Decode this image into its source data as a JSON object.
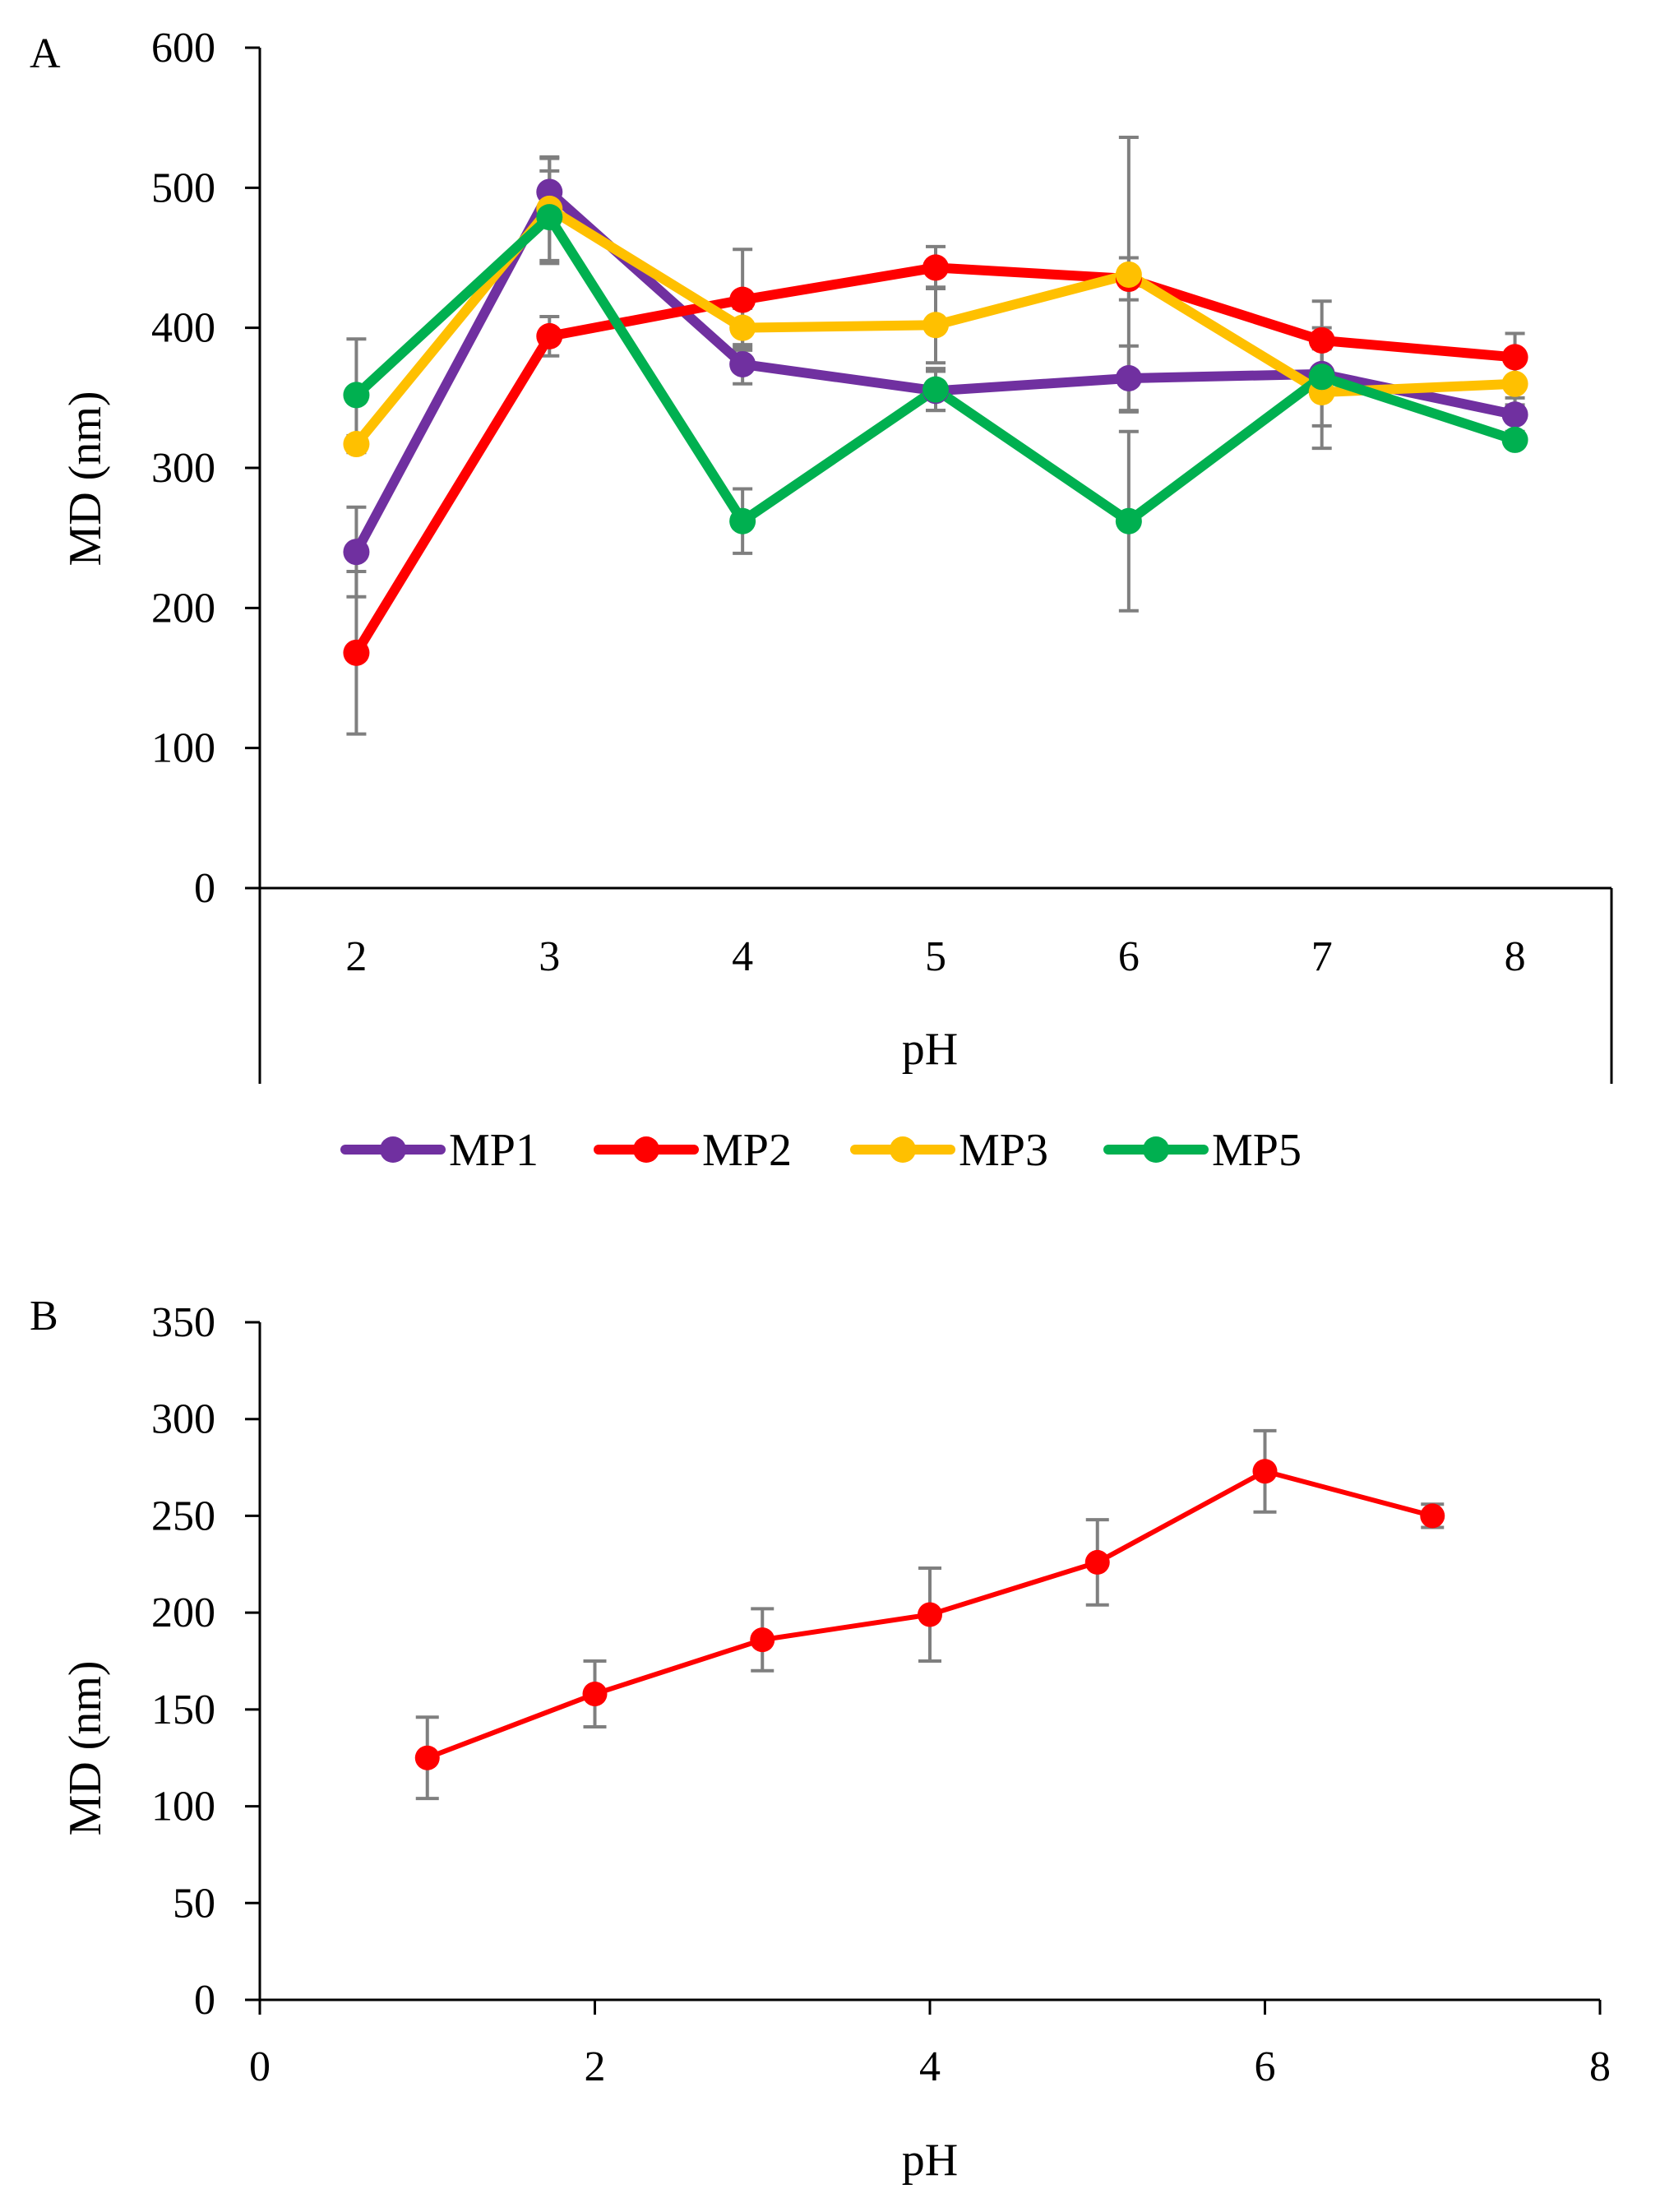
{
  "chart_data": [
    {
      "panel": "A",
      "type": "line",
      "xlabel": "pH",
      "ylabel": "MD (nm)",
      "categories": [
        "2",
        "3",
        "4",
        "5",
        "6",
        "7",
        "8"
      ],
      "ylim": [
        0,
        600
      ],
      "yticks": [
        0,
        100,
        200,
        300,
        400,
        500,
        600
      ],
      "legend_position": "bottom-center",
      "series": [
        {
          "name": "MP1",
          "color": "#7030a0",
          "values": [
            240,
            497,
            374,
            355,
            364,
            367,
            338
          ],
          "errors": [
            32,
            24,
            14,
            14,
            23,
            18,
            12
          ]
        },
        {
          "name": "MP2",
          "color": "#ff0000",
          "values": [
            168,
            394,
            420,
            443,
            435,
            391,
            379
          ],
          "errors": [
            58,
            14,
            36,
            15,
            15,
            28,
            17
          ]
        },
        {
          "name": "MP3",
          "color": "#ffc000",
          "values": [
            317,
            485,
            400,
            402,
            438,
            354,
            360
          ],
          "errors": [
            6,
            37,
            14,
            27,
            98,
            40,
            15
          ]
        },
        {
          "name": "MP5",
          "color": "#00b050",
          "values": [
            352,
            479,
            262,
            356,
            262,
            365,
            320
          ],
          "errors": [
            40,
            33,
            23,
            15,
            64,
            35,
            5
          ]
        }
      ]
    },
    {
      "panel": "B",
      "type": "scatter",
      "xlabel": "pH",
      "ylabel": "MD (nm)",
      "xlim": [
        0,
        8
      ],
      "xticks": [
        0,
        2,
        4,
        6,
        8
      ],
      "ylim": [
        0,
        350
      ],
      "yticks": [
        0,
        50,
        100,
        150,
        200,
        250,
        300,
        350
      ],
      "series": [
        {
          "name": "",
          "color": "#ff0000",
          "x": [
            1,
            2,
            3,
            4,
            5,
            6,
            7
          ],
          "values": [
            125,
            158,
            186,
            199,
            226,
            273,
            250
          ],
          "errors": [
            21,
            17,
            16,
            24,
            22,
            21,
            6
          ]
        }
      ]
    }
  ]
}
